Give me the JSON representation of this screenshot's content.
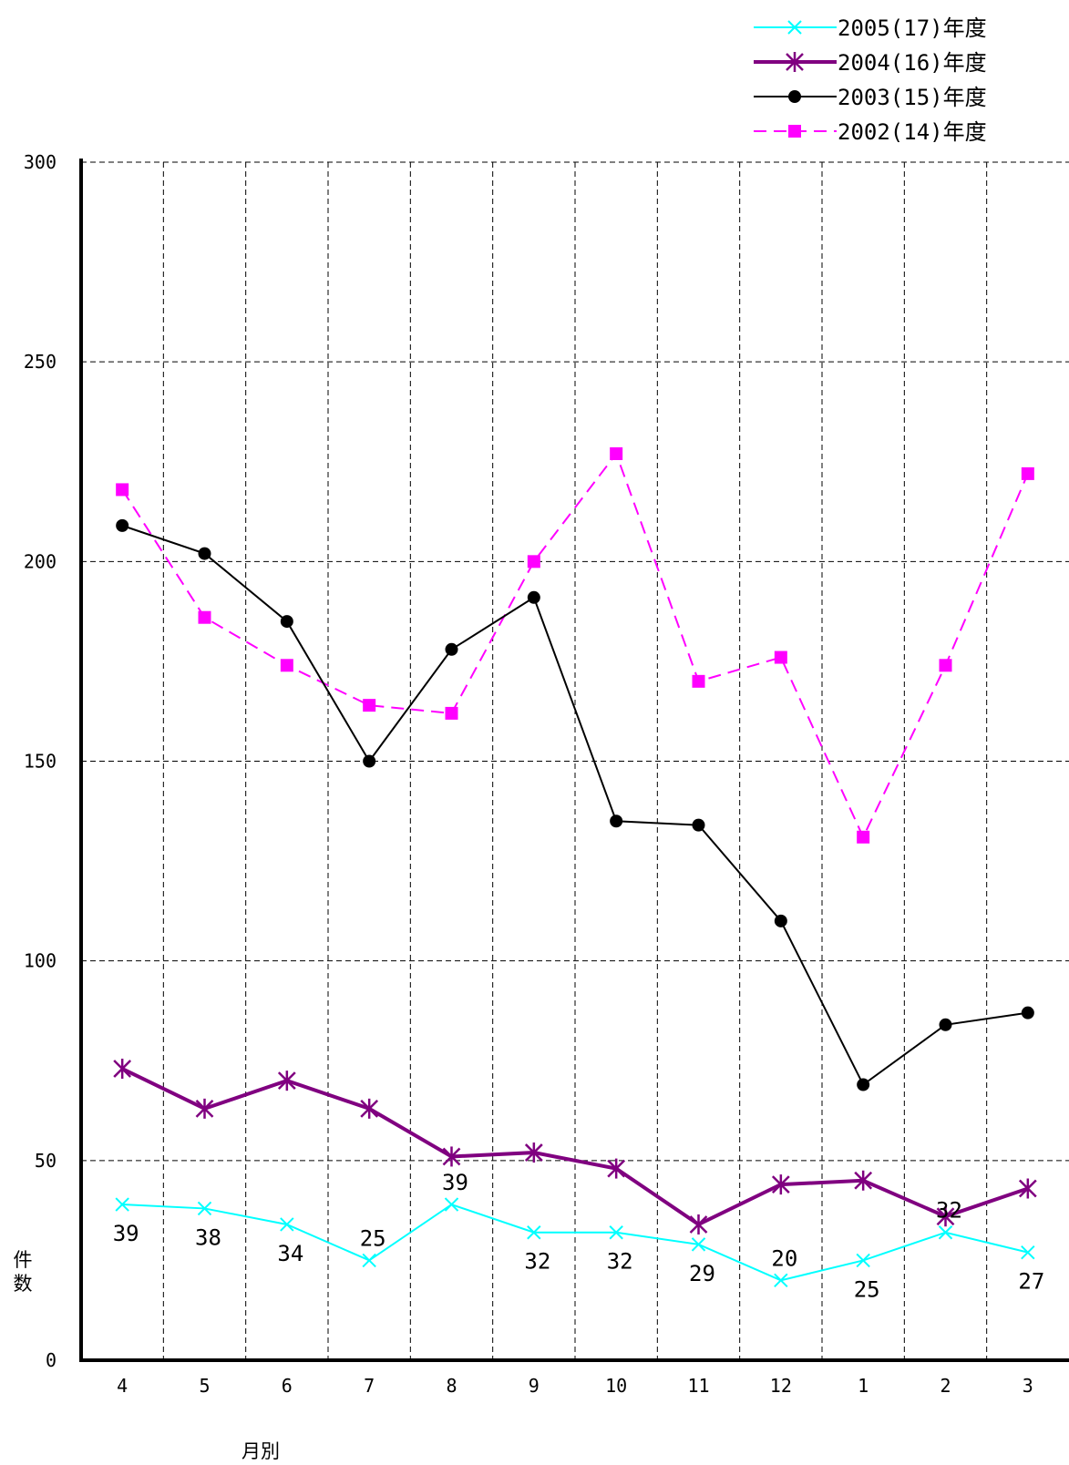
{
  "chart_data": {
    "type": "line",
    "xlabel": "月別",
    "ylabel": "件数",
    "categories": [
      "4",
      "5",
      "6",
      "7",
      "8",
      "9",
      "10",
      "11",
      "12",
      "1",
      "2",
      "3"
    ],
    "ylim": [
      0,
      300
    ],
    "yticks": [
      0,
      50,
      100,
      150,
      200,
      250,
      300
    ],
    "grid": true,
    "legend_position": "top-right",
    "series": [
      {
        "name": "2005(17)年度",
        "color": "#00ffff",
        "marker": "x",
        "line_style": "solid",
        "values": [
          39,
          38,
          34,
          25,
          39,
          32,
          32,
          29,
          20,
          25,
          32,
          27
        ],
        "data_labels": [
          "39",
          "38",
          "34",
          "25",
          "39",
          "32",
          "32",
          "29",
          "20",
          "25",
          "32",
          "27"
        ]
      },
      {
        "name": "2004(16)年度",
        "color": "#800080",
        "marker": "star",
        "line_style": "solid-thick",
        "values": [
          73,
          63,
          70,
          63,
          51,
          52,
          48,
          34,
          44,
          45,
          36,
          43
        ]
      },
      {
        "name": "2003(15)年度",
        "color": "#000000",
        "marker": "circle",
        "line_style": "solid",
        "values": [
          209,
          202,
          185,
          150,
          178,
          191,
          135,
          134,
          110,
          69,
          84,
          87
        ]
      },
      {
        "name": "2002(14)年度",
        "color": "#ff00ff",
        "marker": "square",
        "line_style": "dashed",
        "values": [
          218,
          186,
          174,
          164,
          162,
          200,
          227,
          170,
          176,
          131,
          174,
          222
        ]
      }
    ]
  }
}
